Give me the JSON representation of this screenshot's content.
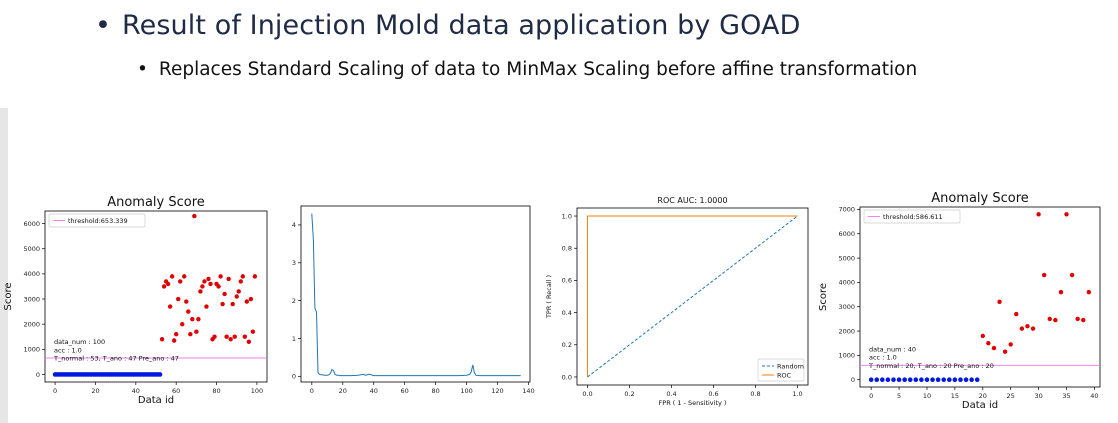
{
  "header": {
    "bullet_glyph": "•",
    "title": "Result of Injection Mold data application by GOAD",
    "subtitle": "Replaces Standard Scaling of data to MinMax Scaling before affine transformation"
  },
  "colors": {
    "title_text": "#1f2a44",
    "anomaly_points": "#e00000",
    "normal_points": "#0018e0",
    "threshold_line": "#ee82ee",
    "line_series": "#1f77b4",
    "roc_line": "#ff7f0e",
    "random_line": "#1f77b4"
  },
  "chart_data": [
    {
      "type": "scatter",
      "title": "Anomaly Score",
      "xlabel": "Data id",
      "ylabel": "Score",
      "xlim": [
        -5,
        105
      ],
      "ylim": [
        -300,
        6500
      ],
      "xticks": [
        0,
        20,
        40,
        60,
        80,
        100
      ],
      "yticks": [
        0,
        1000,
        2000,
        3000,
        4000,
        5000,
        6000
      ],
      "grid": false,
      "legend_position": "top-left",
      "threshold": {
        "label": "threshold:653.339",
        "value": 653.339
      },
      "annotations": [
        "data_num : 100",
        "acc : 1.0",
        "T_normal : 53, T_ano : 47 Pre_ano : 47"
      ],
      "normal": {
        "x_start": 0,
        "count": 53,
        "value": 0
      },
      "anomaly_points": [
        [
          53,
          1400
        ],
        [
          54,
          3500
        ],
        [
          55,
          3700
        ],
        [
          56,
          3600
        ],
        [
          57,
          2700
        ],
        [
          58,
          3900
        ],
        [
          59,
          1350
        ],
        [
          60,
          1600
        ],
        [
          61,
          3000
        ],
        [
          62,
          3700
        ],
        [
          63,
          2000
        ],
        [
          64,
          3900
        ],
        [
          65,
          2900
        ],
        [
          66,
          2500
        ],
        [
          67,
          1600
        ],
        [
          68,
          2200
        ],
        [
          69,
          6300
        ],
        [
          70,
          1700
        ],
        [
          71,
          2200
        ],
        [
          72,
          3300
        ],
        [
          73,
          3500
        ],
        [
          74,
          3700
        ],
        [
          75,
          2700
        ],
        [
          76,
          3800
        ],
        [
          77,
          3600
        ],
        [
          78,
          1400
        ],
        [
          79,
          1500
        ],
        [
          80,
          3600
        ],
        [
          81,
          3500
        ],
        [
          82,
          3900
        ],
        [
          83,
          2800
        ],
        [
          84,
          3200
        ],
        [
          85,
          1500
        ],
        [
          86,
          3800
        ],
        [
          87,
          1400
        ],
        [
          88,
          2800
        ],
        [
          89,
          1500
        ],
        [
          90,
          3100
        ],
        [
          91,
          3300
        ],
        [
          92,
          3700
        ],
        [
          93,
          3900
        ],
        [
          94,
          1500
        ],
        [
          95,
          2900
        ],
        [
          96,
          1300
        ],
        [
          97,
          3000
        ],
        [
          98,
          1700
        ],
        [
          99,
          3900
        ]
      ]
    },
    {
      "type": "line",
      "title": "",
      "xlim": [
        -7,
        141
      ],
      "ylim": [
        -0.15,
        4.5
      ],
      "xticks": [
        0,
        20,
        40,
        60,
        80,
        100,
        120,
        140
      ],
      "yticks": [
        0,
        1,
        2,
        3,
        4
      ],
      "grid": false,
      "series": [
        {
          "x": [
            0,
            1,
            2,
            3,
            4,
            5,
            6,
            7,
            8,
            9,
            10,
            11,
            12,
            13,
            14,
            15,
            16,
            17,
            18,
            20,
            25,
            30,
            33,
            35,
            37,
            40,
            45,
            50,
            55,
            60,
            65,
            70,
            75,
            80,
            85,
            90,
            95,
            100,
            102,
            103,
            104,
            105,
            106,
            108,
            110,
            115,
            120,
            125,
            130,
            135
          ],
          "values": [
            4.3,
            3.6,
            1.8,
            1.7,
            0.1,
            0.05,
            0.04,
            0.04,
            0.03,
            0.03,
            0.03,
            0.04,
            0.08,
            0.18,
            0.15,
            0.05,
            0.03,
            0.03,
            0.02,
            0.02,
            0.02,
            0.03,
            0.05,
            0.03,
            0.06,
            0.02,
            0.02,
            0.02,
            0.02,
            0.02,
            0.02,
            0.02,
            0.02,
            0.02,
            0.02,
            0.02,
            0.02,
            0.03,
            0.05,
            0.12,
            0.3,
            0.1,
            0.03,
            0.02,
            0.02,
            0.02,
            0.02,
            0.02,
            0.02,
            0.02
          ]
        }
      ]
    },
    {
      "type": "line",
      "title": "ROC AUC: 1.0000",
      "xlabel": "FPR ( 1 - Sensitivity )",
      "ylabel": "TPR ( Recall )",
      "xlim": [
        -0.05,
        1.05
      ],
      "ylim": [
        -0.05,
        1.05
      ],
      "xticks": [
        0.0,
        0.2,
        0.4,
        0.6,
        0.8,
        1.0
      ],
      "yticks": [
        0.0,
        0.2,
        0.4,
        0.6,
        0.8,
        1.0
      ],
      "grid": false,
      "legend_position": "bottom-right",
      "series": [
        {
          "name": "Random",
          "style": "dashed",
          "x": [
            0,
            1
          ],
          "values": [
            0,
            1
          ]
        },
        {
          "name": "ROC",
          "style": "solid",
          "x": [
            0,
            0,
            1
          ],
          "values": [
            0,
            1,
            1
          ]
        }
      ]
    },
    {
      "type": "scatter",
      "title": "Anomaly Score",
      "xlabel": "Data id",
      "ylabel": "Score",
      "xlim": [
        -2,
        41
      ],
      "ylim": [
        -300,
        7100
      ],
      "xticks": [
        0,
        5,
        10,
        15,
        20,
        25,
        30,
        35,
        40
      ],
      "yticks": [
        0,
        1000,
        2000,
        3000,
        4000,
        5000,
        6000,
        7000
      ],
      "grid": false,
      "legend_position": "top-left",
      "threshold": {
        "label": "threshold:586.611",
        "value": 586.611
      },
      "annotations": [
        "data_num : 40",
        "acc : 1.0",
        "T_normal : 20, T_ano : 20 Pre_ano : 20"
      ],
      "normal": {
        "x_start": 0,
        "count": 20,
        "value": 0
      },
      "anomaly_points": [
        [
          20,
          1800
        ],
        [
          21,
          1500
        ],
        [
          22,
          1300
        ],
        [
          23,
          3200
        ],
        [
          24,
          1150
        ],
        [
          25,
          1450
        ],
        [
          26,
          2700
        ],
        [
          27,
          2100
        ],
        [
          28,
          2200
        ],
        [
          29,
          2100
        ],
        [
          30,
          6800
        ],
        [
          31,
          4300
        ],
        [
          32,
          2500
        ],
        [
          33,
          2450
        ],
        [
          34,
          3600
        ],
        [
          35,
          6800
        ],
        [
          36,
          4300
        ],
        [
          37,
          2500
        ],
        [
          38,
          2450
        ],
        [
          39,
          3600
        ]
      ]
    }
  ]
}
